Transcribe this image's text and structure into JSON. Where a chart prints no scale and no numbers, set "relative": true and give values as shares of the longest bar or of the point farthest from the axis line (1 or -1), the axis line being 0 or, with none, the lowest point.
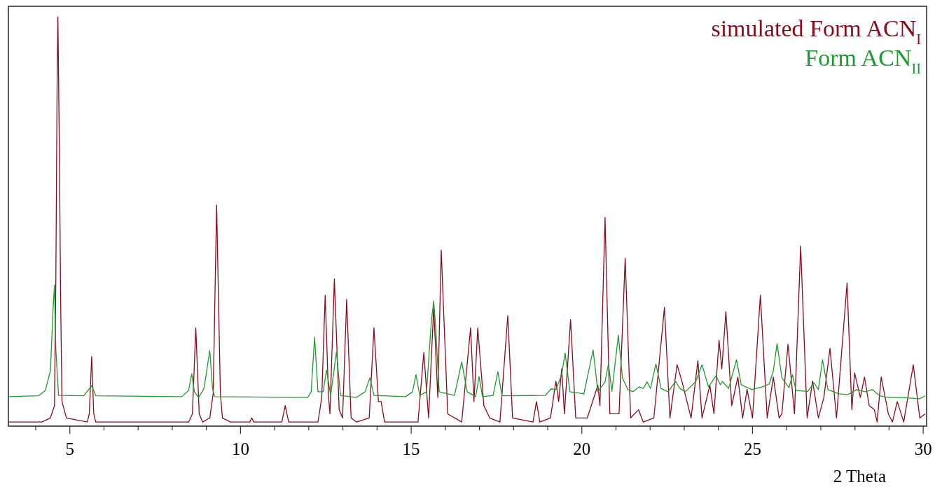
{
  "chart_data": {
    "type": "line",
    "relative": true,
    "xlabel": "2 Theta",
    "legend": "top right",
    "xlim": [
      3.2,
      30.1
    ],
    "xticks": [
      {
        "value": 4,
        "label": null
      },
      5,
      {
        "value": 6,
        "label": null
      },
      {
        "value": 7,
        "label": null
      },
      {
        "value": 8,
        "label": null
      },
      {
        "value": 9,
        "label": null
      },
      10,
      {
        "value": 11,
        "label": null
      },
      {
        "value": 12,
        "label": null
      },
      {
        "value": 13,
        "label": null
      },
      {
        "value": 14,
        "label": null
      },
      15,
      {
        "value": 16,
        "label": null
      },
      {
        "value": 17,
        "label": null
      },
      {
        "value": 18,
        "label": null
      },
      {
        "value": 19,
        "label": null
      },
      20,
      {
        "value": 21,
        "label": null
      },
      {
        "value": 22,
        "label": null
      },
      {
        "value": 23,
        "label": null
      },
      {
        "value": 24,
        "label": null
      },
      25,
      {
        "value": 26,
        "label": null
      },
      {
        "value": 27,
        "label": null
      },
      {
        "value": 28,
        "label": null
      },
      {
        "value": 29,
        "label": null
      },
      30
    ],
    "series": [
      {
        "name": "simulated Form ACN$_{I}$",
        "color": "#8b0a1c",
        "x": [
          3.2,
          4.18,
          4.43,
          4.55,
          4.59,
          4.63,
          4.65,
          4.69,
          4.73,
          4.77,
          4.9,
          5.51,
          5.57,
          5.64,
          5.7,
          5.76,
          8.48,
          8.59,
          8.69,
          8.79,
          8.89,
          9.1,
          9.2,
          9.3,
          9.41,
          9.47,
          9.71,
          10.27,
          10.33,
          10.39,
          11.21,
          11.31,
          11.41,
          12.27,
          12.38,
          12.48,
          12.58,
          12.62,
          12.75,
          12.89,
          12.99,
          13.11,
          13.24,
          13.4,
          13.77,
          13.91,
          14.04,
          14.12,
          14.22,
          15.2,
          15.37,
          15.51,
          15.66,
          15.78,
          15.88,
          16.07,
          16.48,
          16.74,
          16.84,
          16.95,
          17.13,
          17.3,
          17.6,
          17.83,
          17.97,
          18.57,
          18.67,
          18.77,
          19.08,
          19.24,
          19.32,
          19.41,
          19.49,
          19.67,
          19.82,
          20.16,
          20.47,
          20.53,
          20.68,
          20.82,
          21.09,
          21.27,
          21.43,
          21.66,
          21.8,
          22.11,
          22.42,
          22.58,
          22.79,
          22.93,
          23.2,
          23.4,
          23.52,
          23.75,
          23.87,
          24.02,
          24.1,
          24.22,
          24.39,
          24.57,
          24.71,
          24.84,
          25.0,
          25.23,
          25.43,
          25.61,
          25.78,
          25.86,
          26.04,
          26.23,
          26.41,
          26.6,
          26.76,
          26.93,
          27.09,
          27.27,
          27.46,
          27.77,
          27.91,
          27.99,
          28.16,
          28.28,
          28.42,
          28.57,
          28.65,
          28.77,
          28.98,
          29.1,
          29.24,
          29.43,
          29.71,
          29.9,
          30.06
        ],
        "values": [
          0.01,
          0.01,
          0.02,
          0.05,
          0.36,
          0.87,
          1.0,
          0.7,
          0.31,
          0.06,
          0.02,
          0.01,
          0.03,
          0.17,
          0.03,
          0.01,
          0.01,
          0.03,
          0.24,
          0.03,
          0.01,
          0.02,
          0.08,
          0.54,
          0.08,
          0.02,
          0.01,
          0.01,
          0.02,
          0.01,
          0.01,
          0.05,
          0.01,
          0.01,
          0.07,
          0.32,
          0.07,
          0.03,
          0.36,
          0.04,
          0.02,
          0.31,
          0.02,
          0.01,
          0.02,
          0.24,
          0.06,
          0.06,
          0.01,
          0.01,
          0.18,
          0.02,
          0.29,
          0.07,
          0.43,
          0.03,
          0.01,
          0.24,
          0.06,
          0.24,
          0.05,
          0.02,
          0.01,
          0.27,
          0.02,
          0.01,
          0.06,
          0.01,
          0.02,
          0.11,
          0.06,
          0.14,
          0.03,
          0.26,
          0.02,
          0.02,
          0.1,
          0.05,
          0.51,
          0.03,
          0.03,
          0.41,
          0.02,
          0.04,
          0.01,
          0.02,
          0.29,
          0.02,
          0.15,
          0.11,
          0.02,
          0.16,
          0.02,
          0.1,
          0.03,
          0.21,
          0.14,
          0.28,
          0.05,
          0.12,
          0.02,
          0.09,
          0.02,
          0.32,
          0.02,
          0.12,
          0.02,
          0.03,
          0.2,
          0.03,
          0.44,
          0.02,
          0.11,
          0.02,
          0.07,
          0.19,
          0.02,
          0.35,
          0.04,
          0.13,
          0.07,
          0.12,
          0.05,
          0.04,
          0.01,
          0.12,
          0.03,
          0.01,
          0.06,
          0.01,
          0.15,
          0.02,
          0.03
        ]
      },
      {
        "name": "Form ACN$_{II}$",
        "color": "#1f9a2e",
        "x": [
          3.2,
          4.08,
          4.28,
          4.43,
          4.51,
          4.55,
          4.59,
          4.67,
          5.41,
          5.64,
          5.76,
          8.28,
          8.48,
          8.57,
          8.65,
          8.77,
          8.93,
          9.1,
          9.18,
          9.24,
          11.97,
          12.07,
          12.17,
          12.27,
          12.42,
          12.52,
          12.64,
          12.81,
          12.93,
          13.4,
          13.65,
          13.79,
          13.91,
          14.84,
          15.04,
          15.14,
          15.25,
          15.45,
          15.59,
          15.66,
          15.72,
          15.82,
          16.27,
          16.48,
          16.64,
          16.89,
          16.99,
          17.09,
          17.4,
          17.54,
          17.66,
          18.93,
          19.1,
          19.24,
          19.41,
          19.51,
          19.65,
          20.06,
          20.33,
          20.47,
          20.68,
          20.78,
          20.88,
          21.07,
          21.19,
          21.35,
          21.5,
          21.68,
          21.8,
          21.91,
          22.01,
          22.17,
          22.32,
          22.52,
          22.75,
          22.87,
          23.03,
          23.34,
          23.52,
          23.71,
          23.93,
          24.06,
          24.12,
          24.3,
          24.53,
          24.67,
          24.98,
          25.29,
          25.49,
          25.61,
          25.72,
          25.86,
          26.07,
          26.17,
          26.27,
          26.62,
          26.8,
          26.93,
          27.05,
          27.21,
          27.54,
          27.79,
          28.05,
          28.3,
          28.52,
          28.73,
          28.98,
          29.39,
          29.9,
          30.06
        ],
        "values": [
          0.072,
          0.074,
          0.087,
          0.135,
          0.289,
          0.345,
          0.186,
          0.075,
          0.074,
          0.099,
          0.074,
          0.072,
          0.087,
          0.128,
          0.084,
          0.07,
          0.092,
          0.185,
          0.092,
          0.072,
          0.07,
          0.084,
          0.217,
          0.084,
          0.084,
          0.137,
          0.075,
          0.181,
          0.075,
          0.07,
          0.084,
          0.118,
          0.075,
          0.072,
          0.084,
          0.126,
          0.075,
          0.084,
          0.255,
          0.306,
          0.238,
          0.084,
          0.075,
          0.157,
          0.084,
          0.072,
          0.121,
          0.072,
          0.075,
          0.133,
          0.074,
          0.075,
          0.091,
          0.089,
          0.126,
          0.179,
          0.084,
          0.079,
          0.186,
          0.084,
          0.108,
          0.152,
          0.085,
          0.222,
          0.118,
          0.089,
          0.084,
          0.096,
          0.092,
          0.108,
          0.092,
          0.152,
          0.092,
          0.084,
          0.109,
          0.092,
          0.084,
          0.109,
          0.15,
          0.096,
          0.123,
          0.101,
          0.109,
          0.092,
          0.162,
          0.101,
          0.089,
          0.096,
          0.103,
          0.135,
          0.202,
          0.118,
          0.094,
          0.126,
          0.087,
          0.085,
          0.106,
          0.089,
          0.162,
          0.089,
          0.079,
          0.077,
          0.089,
          0.084,
          0.089,
          0.074,
          0.07,
          0.07,
          0.067,
          0.074
        ]
      }
    ]
  }
}
